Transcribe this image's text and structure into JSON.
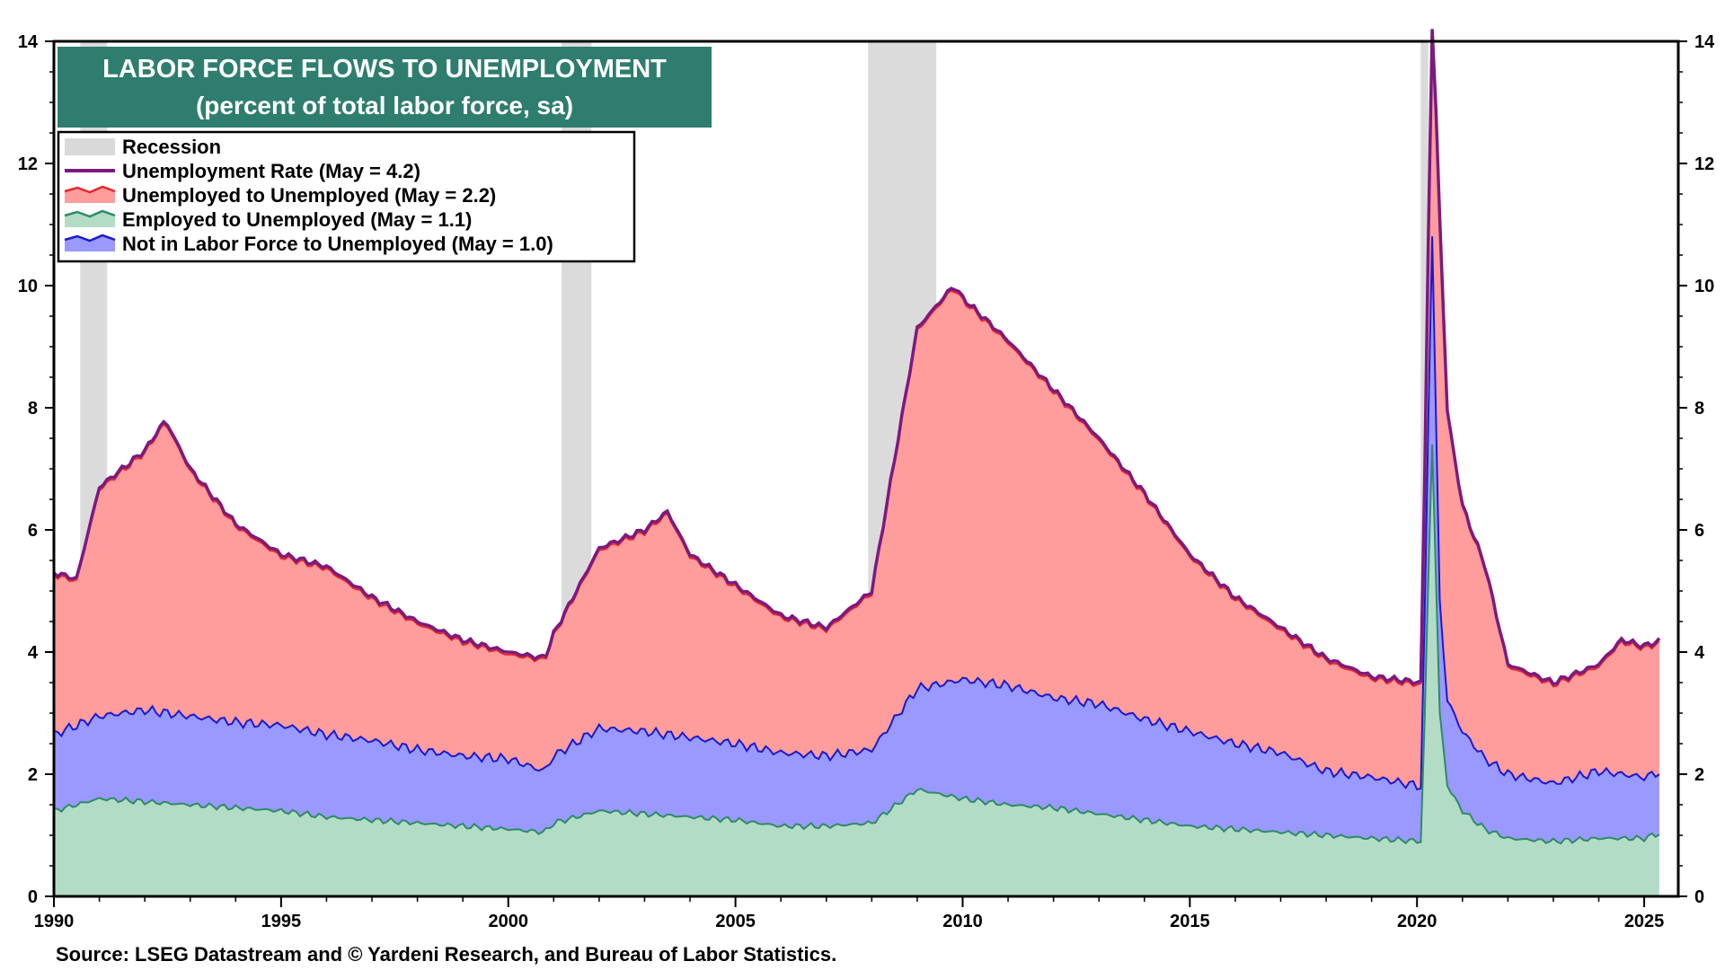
{
  "chart_data": {
    "type": "area",
    "title": "LABOR FORCE FLOWS TO UNEMPLOYMENT",
    "subtitle": "(percent of total labor force, sa)",
    "source": "Source: LSEG Datastream and © Yardeni Research, and Bureau of Labor Statistics.",
    "xlim": [
      1990,
      2025.75
    ],
    "ylim": [
      0,
      14
    ],
    "yticks": [
      0,
      2,
      4,
      6,
      8,
      10,
      12,
      14
    ],
    "xticks": [
      1990,
      1995,
      2000,
      2005,
      2010,
      2015,
      2020,
      2025
    ],
    "grid": false,
    "legend_position": "top-left",
    "recessions": [
      [
        1990.58,
        1991.17
      ],
      [
        2001.17,
        2001.83
      ],
      [
        2007.92,
        2009.42
      ],
      [
        2020.08,
        2020.25
      ]
    ],
    "legend": [
      {
        "label": "Recession",
        "kind": "recession",
        "color": "#d9d9d9"
      },
      {
        "label": "Unemployment Rate (May = 4.2)",
        "kind": "line",
        "color": "#7b1a80"
      },
      {
        "label": "Unemployed to Unemployed (May = 2.2)",
        "kind": "area",
        "color": "#ff9c9c",
        "line": "#e8262a"
      },
      {
        "label": "Employed to Unemployed (May = 1.1)",
        "kind": "area",
        "color": "#b3dcc6",
        "line": "#2e8b64"
      },
      {
        "label": "Not in Labor Force to Unemployed (May = 1.0)",
        "kind": "area",
        "color": "#9999ff",
        "line": "#1a1acc"
      }
    ],
    "series": [
      {
        "name": "Employed to Unemployed",
        "values": [
          [
            1990,
            1.4
          ],
          [
            1991,
            1.6
          ],
          [
            1992,
            1.55
          ],
          [
            1993,
            1.5
          ],
          [
            1994,
            1.45
          ],
          [
            1995,
            1.4
          ],
          [
            1996,
            1.3
          ],
          [
            1997,
            1.25
          ],
          [
            1998,
            1.2
          ],
          [
            1999,
            1.15
          ],
          [
            2000,
            1.1
          ],
          [
            2000.8,
            1.05
          ],
          [
            2001,
            1.2
          ],
          [
            2002,
            1.4
          ],
          [
            2003,
            1.35
          ],
          [
            2004,
            1.3
          ],
          [
            2005,
            1.25
          ],
          [
            2006,
            1.15
          ],
          [
            2007,
            1.15
          ],
          [
            2008,
            1.2
          ],
          [
            2009,
            1.75
          ],
          [
            2010,
            1.6
          ],
          [
            2011,
            1.5
          ],
          [
            2012,
            1.45
          ],
          [
            2013,
            1.35
          ],
          [
            2014,
            1.25
          ],
          [
            2015,
            1.15
          ],
          [
            2016,
            1.1
          ],
          [
            2017,
            1.05
          ],
          [
            2018,
            1.0
          ],
          [
            2019,
            0.95
          ],
          [
            2020.1,
            0.9
          ],
          [
            2020.33,
            7.5
          ],
          [
            2020.5,
            3.0
          ],
          [
            2020.67,
            1.8
          ],
          [
            2021,
            1.4
          ],
          [
            2021.5,
            1.1
          ],
          [
            2022,
            0.95
          ],
          [
            2023,
            0.9
          ],
          [
            2024,
            0.95
          ],
          [
            2025,
            0.95
          ],
          [
            2025.4,
            1.05
          ]
        ]
      },
      {
        "name": "Not in Labor Force to Unemployed",
        "values": [
          [
            1990,
            1.25
          ],
          [
            1991,
            1.35
          ],
          [
            1992,
            1.5
          ],
          [
            1993,
            1.45
          ],
          [
            1994,
            1.4
          ],
          [
            1995,
            1.4
          ],
          [
            1996,
            1.35
          ],
          [
            1997,
            1.3
          ],
          [
            1998,
            1.2
          ],
          [
            1999,
            1.15
          ],
          [
            2000,
            1.15
          ],
          [
            2000.8,
            1.0
          ],
          [
            2001,
            1.1
          ],
          [
            2002,
            1.35
          ],
          [
            2003,
            1.35
          ],
          [
            2004,
            1.3
          ],
          [
            2005,
            1.25
          ],
          [
            2006,
            1.2
          ],
          [
            2007,
            1.15
          ],
          [
            2008,
            1.2
          ],
          [
            2009,
            1.65
          ],
          [
            2010,
            1.95
          ],
          [
            2011,
            1.95
          ],
          [
            2012,
            1.8
          ],
          [
            2013,
            1.8
          ],
          [
            2014,
            1.65
          ],
          [
            2015,
            1.55
          ],
          [
            2016,
            1.4
          ],
          [
            2017,
            1.3
          ],
          [
            2018,
            1.05
          ],
          [
            2019,
            1.0
          ],
          [
            2020.1,
            0.9
          ],
          [
            2020.33,
            3.5
          ],
          [
            2020.5,
            1.8
          ],
          [
            2020.67,
            1.4
          ],
          [
            2021,
            1.3
          ],
          [
            2021.5,
            1.15
          ],
          [
            2022,
            1.05
          ],
          [
            2023,
            0.95
          ],
          [
            2024,
            1.1
          ],
          [
            2025,
            1.0
          ],
          [
            2025.4,
            1.0
          ]
        ]
      },
      {
        "name": "Unemployed to Unemployed",
        "values": [
          [
            1990,
            2.6
          ],
          [
            1991,
            3.8
          ],
          [
            1992,
            4.3
          ],
          [
            1993,
            4.0
          ],
          [
            1994,
            3.3
          ],
          [
            1995,
            2.6
          ],
          [
            1996,
            2.6
          ],
          [
            1997,
            2.3
          ],
          [
            1998,
            2.0
          ],
          [
            1999,
            1.85
          ],
          [
            2000,
            1.7
          ],
          [
            2000.8,
            1.8
          ],
          [
            2001,
            1.95
          ],
          [
            2002,
            2.9
          ],
          [
            2003,
            3.3
          ],
          [
            2004,
            2.9
          ],
          [
            2005,
            2.5
          ],
          [
            2006,
            2.2
          ],
          [
            2007,
            2.1
          ],
          [
            2008,
            2.55
          ],
          [
            2009,
            6.0
          ],
          [
            2010,
            6.3
          ],
          [
            2011,
            5.9
          ],
          [
            2012,
            5.1
          ],
          [
            2013,
            4.4
          ],
          [
            2014,
            3.8
          ],
          [
            2015,
            3.2
          ],
          [
            2016,
            2.8
          ],
          [
            2017,
            2.4
          ],
          [
            2018,
            1.9
          ],
          [
            2019,
            1.65
          ],
          [
            2020.1,
            1.7
          ],
          [
            2020.33,
            3.0
          ],
          [
            2020.5,
            4.5
          ],
          [
            2020.67,
            4.0
          ],
          [
            2021,
            3.7
          ],
          [
            2021.5,
            2.8
          ],
          [
            2022,
            1.6
          ],
          [
            2023,
            1.6
          ],
          [
            2024,
            1.9
          ],
          [
            2025,
            2.1
          ],
          [
            2025.4,
            2.2
          ]
        ]
      },
      {
        "name": "Unemployment Rate",
        "values": [
          [
            1990,
            5.3
          ],
          [
            1990.5,
            5.2
          ],
          [
            1991,
            6.7
          ],
          [
            1992,
            7.3
          ],
          [
            1992.45,
            7.8
          ],
          [
            1993,
            7.0
          ],
          [
            1994,
            6.1
          ],
          [
            1995,
            5.6
          ],
          [
            1996,
            5.4
          ],
          [
            1997,
            4.9
          ],
          [
            1998,
            4.5
          ],
          [
            1999,
            4.2
          ],
          [
            2000,
            4.0
          ],
          [
            2000.8,
            3.9
          ],
          [
            2001,
            4.3
          ],
          [
            2002,
            5.7
          ],
          [
            2003,
            6.0
          ],
          [
            2003.5,
            6.3
          ],
          [
            2004,
            5.6
          ],
          [
            2005,
            5.1
          ],
          [
            2006,
            4.6
          ],
          [
            2007,
            4.4
          ],
          [
            2008,
            5.0
          ],
          [
            2009,
            9.3
          ],
          [
            2009.8,
            10.0
          ],
          [
            2010,
            9.8
          ],
          [
            2011,
            9.1
          ],
          [
            2012,
            8.3
          ],
          [
            2013,
            7.5
          ],
          [
            2014,
            6.6
          ],
          [
            2015,
            5.6
          ],
          [
            2016,
            4.9
          ],
          [
            2017,
            4.4
          ],
          [
            2018,
            3.9
          ],
          [
            2019,
            3.6
          ],
          [
            2020.1,
            3.5
          ],
          [
            2020.33,
            14.7
          ],
          [
            2020.5,
            11.1
          ],
          [
            2020.67,
            7.9
          ],
          [
            2021,
            6.4
          ],
          [
            2021.5,
            5.4
          ],
          [
            2022,
            3.8
          ],
          [
            2023,
            3.5
          ],
          [
            2024,
            3.8
          ],
          [
            2024.5,
            4.2
          ],
          [
            2025,
            4.1
          ],
          [
            2025.4,
            4.2
          ]
        ]
      }
    ]
  }
}
